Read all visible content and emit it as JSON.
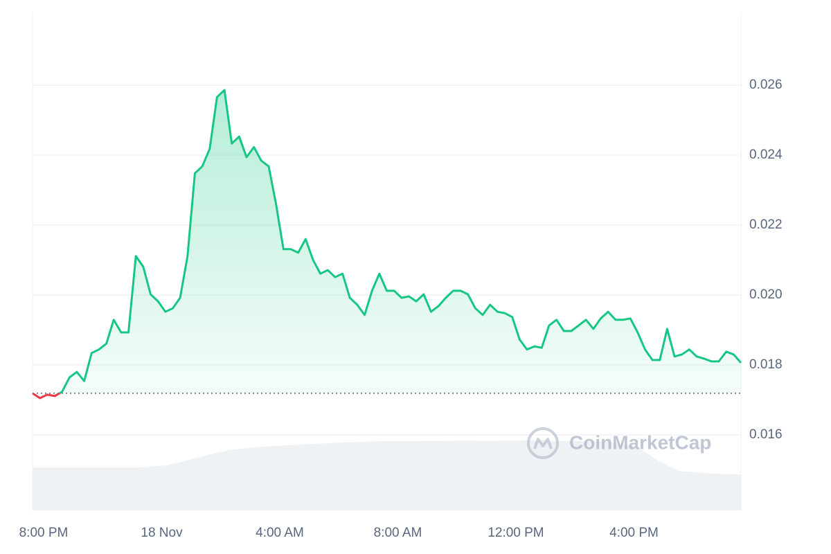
{
  "chart_data": {
    "type": "line",
    "watermark": "CoinMarketCap",
    "x": [
      -0.375,
      -0.125,
      0.125,
      0.375,
      0.625,
      0.875,
      1.125,
      1.375,
      1.625,
      1.875,
      2.125,
      2.375,
      2.625,
      2.875,
      3.125,
      3.375,
      3.625,
      3.875,
      4.125,
      4.375,
      4.625,
      4.875,
      5.125,
      5.375,
      5.625,
      5.875,
      6.125,
      6.375,
      6.625,
      6.875,
      7.125,
      7.375,
      7.625,
      7.875,
      8.125,
      8.375,
      8.625,
      8.875,
      9.125,
      9.375,
      9.625,
      9.875,
      10.125,
      10.375,
      10.625,
      10.875,
      11.125,
      11.375,
      11.625,
      11.875,
      12.125,
      12.375,
      12.625,
      12.875,
      13.125,
      13.375,
      13.625,
      13.875,
      14.125,
      14.375,
      14.625,
      14.875,
      15.125,
      15.375,
      15.625,
      15.875,
      16.125,
      16.375,
      16.625,
      16.875,
      17.125,
      17.375,
      17.625,
      17.875,
      18.125,
      18.375,
      18.625,
      18.875,
      19.125,
      19.375,
      19.625,
      19.875,
      20.125,
      20.375,
      20.625,
      20.875,
      21.125,
      21.375,
      21.625,
      21.875,
      22.125,
      22.375,
      22.625,
      22.875,
      23.125,
      23.375,
      23.625
    ],
    "series": [
      {
        "color": "#16c784",
        "negative_color": "#ea3943",
        "values": [
          0.01719,
          0.01705,
          0.01715,
          0.01711,
          0.01723,
          0.01764,
          0.0178,
          0.01754,
          0.01834,
          0.01844,
          0.01861,
          0.01929,
          0.01893,
          0.01893,
          0.02111,
          0.02081,
          0.02002,
          0.01982,
          0.01952,
          0.01962,
          0.01992,
          0.02111,
          0.02348,
          0.02368,
          0.02418,
          0.02566,
          0.02586,
          0.02433,
          0.02453,
          0.02394,
          0.02423,
          0.02384,
          0.02368,
          0.02259,
          0.02131,
          0.02131,
          0.02121,
          0.0216,
          0.02101,
          0.02061,
          0.02071,
          0.02051,
          0.02061,
          0.01992,
          0.01972,
          0.01943,
          0.02012,
          0.02061,
          0.02012,
          0.02012,
          0.01992,
          0.01996,
          0.01982,
          0.02002,
          0.01952,
          0.01968,
          0.01992,
          0.02012,
          0.02012,
          0.02002,
          0.01962,
          0.01943,
          0.01972,
          0.01952,
          0.01948,
          0.01937,
          0.01873,
          0.01844,
          0.01853,
          0.01849,
          0.01913,
          0.01929,
          0.01897,
          0.01897,
          0.01913,
          0.01929,
          0.01903,
          0.01933,
          0.01952,
          0.01929,
          0.01929,
          0.01933,
          0.01893,
          0.01844,
          0.01814,
          0.01814,
          0.01903,
          0.01824,
          0.0183,
          0.01844,
          0.01824,
          0.01818,
          0.0181,
          0.0181,
          0.01838,
          0.0183,
          0.01806
        ]
      }
    ],
    "xlim": [
      -0.375,
      23.625
    ],
    "xticks": [
      {
        "value": 0,
        "label": "8:00 PM"
      },
      {
        "value": 4,
        "label": "18 Nov"
      },
      {
        "value": 8,
        "label": "4:00 AM"
      },
      {
        "value": 12,
        "label": "8:00 AM"
      },
      {
        "value": 16,
        "label": "12:00 PM"
      },
      {
        "value": 20,
        "label": "4:00 PM"
      }
    ],
    "ylim": [
      0.01384,
      0.02808
    ],
    "yticks": [
      0.016,
      0.018,
      {
        "value": 0.02,
        "label": "0.020"
      },
      0.022,
      0.024,
      0.026
    ],
    "grid": true
  }
}
